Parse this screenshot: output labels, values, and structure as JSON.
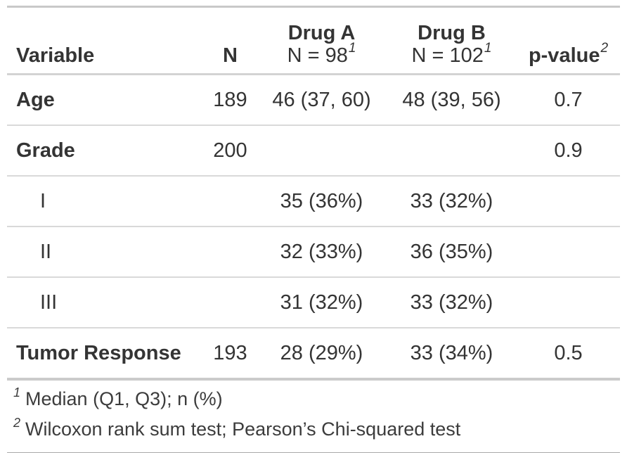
{
  "chart_data": {
    "type": "table",
    "columns": [
      {
        "title": "Variable"
      },
      {
        "title": "N"
      },
      {
        "title": "Drug A",
        "subtitle": "N = 98",
        "footnote_mark": "1"
      },
      {
        "title": "Drug B",
        "subtitle": "N = 102",
        "footnote_mark": "1"
      },
      {
        "title": "p-value",
        "footnote_mark": "2"
      }
    ],
    "rows": [
      {
        "label": "Age",
        "n": "189",
        "drug_a": "46 (37, 60)",
        "drug_b": "48 (39, 56)",
        "p": "0.7"
      },
      {
        "label": "Grade",
        "n": "200",
        "drug_a": "",
        "drug_b": "",
        "p": "0.9"
      },
      {
        "label": "I",
        "n": "",
        "drug_a": "35 (36%)",
        "drug_b": "33 (32%)",
        "p": ""
      },
      {
        "label": "II",
        "n": "",
        "drug_a": "32 (33%)",
        "drug_b": "36 (35%)",
        "p": ""
      },
      {
        "label": "III",
        "n": "",
        "drug_a": "31 (32%)",
        "drug_b": "33 (32%)",
        "p": ""
      },
      {
        "label": "Tumor Response",
        "n": "193",
        "drug_a": "28 (29%)",
        "drug_b": "33 (34%)",
        "p": "0.5"
      }
    ],
    "footnotes": [
      {
        "mark": "1",
        "text": "Median (Q1, Q3); n (%)"
      },
      {
        "mark": "2",
        "text": "Wilcoxon rank sum test; Pearson’s Chi-squared test"
      }
    ],
    "colors": {
      "text": "#343434",
      "border_light": "#d3d3d3",
      "border_row": "#d9d9d9",
      "border_bottom": "#a9a9a9",
      "background": "#ffffff"
    }
  }
}
